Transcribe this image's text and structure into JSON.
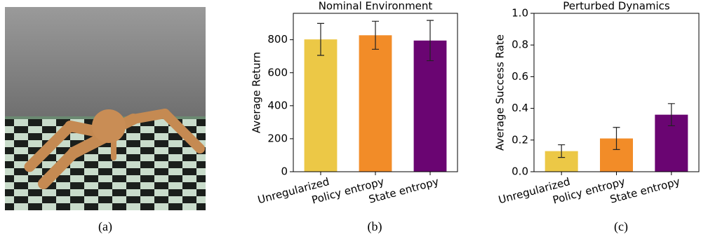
{
  "captions": [
    "(a)",
    "(b)",
    "(c)"
  ],
  "chart_data": [
    {
      "type": "bar",
      "title": "Nominal Environment",
      "y_label": "Average Return",
      "categories": [
        "Unregularized",
        "Policy entropy",
        "State entropy"
      ],
      "values": [
        802,
        827,
        795
      ],
      "errors": [
        97,
        85,
        122
      ],
      "colors": [
        "#ecc846",
        "#f28c28",
        "#6a0572"
      ],
      "ylim": [
        0,
        960
      ],
      "yticks": [
        0,
        200,
        400,
        600,
        800
      ]
    },
    {
      "type": "bar",
      "title": "Perturbed Dynamics",
      "y_label": "Average Success Rate",
      "categories": [
        "Unregularized",
        "Policy entropy",
        "State entropy"
      ],
      "values": [
        0.13,
        0.21,
        0.36
      ],
      "errors": [
        0.04,
        0.07,
        0.07
      ],
      "colors": [
        "#ecc846",
        "#f28c28",
        "#6a0572"
      ],
      "ylim": [
        0,
        1.0
      ],
      "yticks": [
        {
          "value": 0,
          "label": "0.0"
        },
        0.2,
        0.4,
        0.6,
        0.8,
        {
          "value": 1.0,
          "label": "1.0"
        }
      ]
    }
  ]
}
